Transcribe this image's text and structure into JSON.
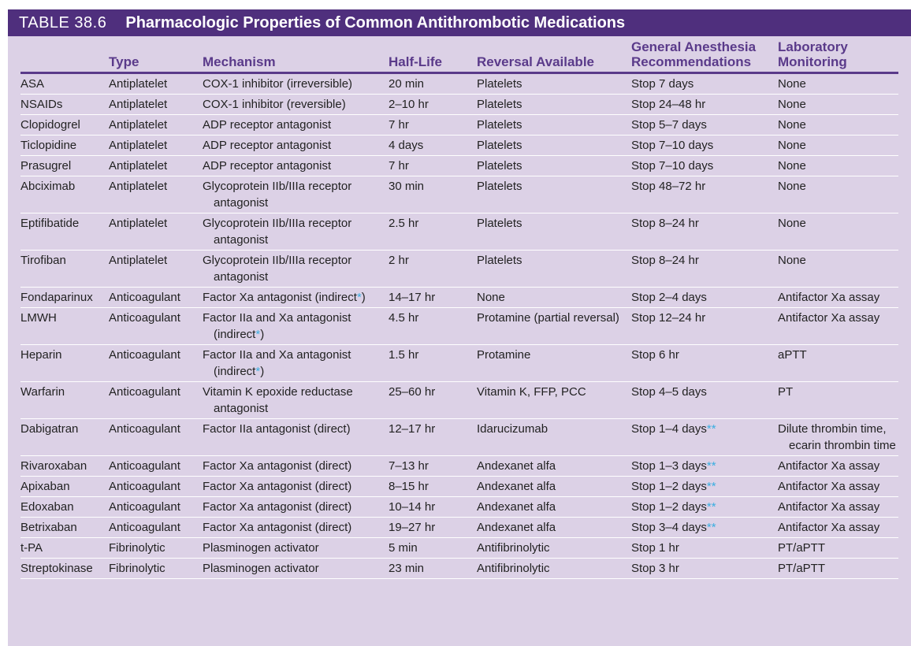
{
  "title": {
    "number": "TABLE 38.6",
    "text": "Pharmacologic Properties of Common Antithrombotic Medications"
  },
  "columns": [
    {
      "line1": "",
      "line2": ""
    },
    {
      "line1": "",
      "line2": "Type"
    },
    {
      "line1": "",
      "line2": "Mechanism"
    },
    {
      "line1": "",
      "line2": "Half-Life"
    },
    {
      "line1": "",
      "line2": "Reversal Available"
    },
    {
      "line1": "General Anesthesia",
      "line2": "Recommendations"
    },
    {
      "line1": "Laboratory",
      "line2": "Monitoring"
    }
  ],
  "rows": [
    {
      "drug": "ASA",
      "type": "Antiplatelet",
      "mech1": "COX-1 inhibitor (irreversible)",
      "mech2": "",
      "mech_note": "",
      "mech2_note": "",
      "half": "20 min",
      "rev": "Platelets",
      "ga": "Stop 7 days",
      "ga_note": "",
      "lab1": "None",
      "lab2": ""
    },
    {
      "drug": "NSAIDs",
      "type": "Antiplatelet",
      "mech1": "COX-1 inhibitor (reversible)",
      "mech2": "",
      "mech_note": "",
      "mech2_note": "",
      "half": "2–10 hr",
      "rev": "Platelets",
      "ga": "Stop 24–48 hr",
      "ga_note": "",
      "lab1": "None",
      "lab2": ""
    },
    {
      "drug": "Clopidogrel",
      "type": "Antiplatelet",
      "mech1": "ADP receptor antagonist",
      "mech2": "",
      "mech_note": "",
      "mech2_note": "",
      "half": "7 hr",
      "rev": "Platelets",
      "ga": "Stop 5–7 days",
      "ga_note": "",
      "lab1": "None",
      "lab2": ""
    },
    {
      "drug": "Ticlopidine",
      "type": "Antiplatelet",
      "mech1": "ADP receptor antagonist",
      "mech2": "",
      "mech_note": "",
      "mech2_note": "",
      "half": "4 days",
      "rev": "Platelets",
      "ga": "Stop 7–10 days",
      "ga_note": "",
      "lab1": "None",
      "lab2": ""
    },
    {
      "drug": "Prasugrel",
      "type": "Antiplatelet",
      "mech1": "ADP receptor antagonist",
      "mech2": "",
      "mech_note": "",
      "mech2_note": "",
      "half": "7 hr",
      "rev": "Platelets",
      "ga": "Stop 7–10 days",
      "ga_note": "",
      "lab1": "None",
      "lab2": ""
    },
    {
      "drug": "Abciximab",
      "type": "Antiplatelet",
      "mech1": "Glycoprotein IIb/IIIa receptor",
      "mech2": "antagonist",
      "mech_note": "",
      "mech2_note": "",
      "half": "30 min",
      "rev": "Platelets",
      "ga": "Stop 48–72 hr",
      "ga_note": "",
      "lab1": "None",
      "lab2": ""
    },
    {
      "drug": "Eptifibatide",
      "type": "Antiplatelet",
      "mech1": "Glycoprotein IIb/IIIa receptor",
      "mech2": "antagonist",
      "mech_note": "",
      "mech2_note": "",
      "half": "2.5 hr",
      "rev": "Platelets",
      "ga": "Stop 8–24 hr",
      "ga_note": "",
      "lab1": "None",
      "lab2": ""
    },
    {
      "drug": "Tirofiban",
      "type": "Antiplatelet",
      "mech1": "Glycoprotein IIb/IIIa receptor",
      "mech2": "antagonist",
      "mech_note": "",
      "mech2_note": "",
      "half": "2 hr",
      "rev": "Platelets",
      "ga": "Stop 8–24 hr",
      "ga_note": "",
      "lab1": "None",
      "lab2": ""
    },
    {
      "drug": "Fondaparinux",
      "type": "Anticoagulant",
      "mech1": "Factor Xa antagonist (indirect",
      "mech2": "",
      "mech_note": "*",
      ")": "",
      "mech_close": ")",
      "mech2_note": "",
      "half": "14–17 hr",
      "rev": "None",
      "ga": "Stop 2–4 days",
      "ga_note": "",
      "lab1": "Antifactor Xa assay",
      "lab2": ""
    },
    {
      "drug": "LMWH",
      "type": "Anticoagulant",
      "mech1": "Factor IIa and Xa antagonist",
      "mech2": "(indirect",
      "mech_note": "",
      "mech2_note": "*",
      "mech2_close": ")",
      "half": "4.5 hr",
      "rev": "Protamine (partial reversal)",
      "ga": "Stop 12–24 hr",
      "ga_note": "",
      "lab1": "Antifactor Xa assay",
      "lab2": ""
    },
    {
      "drug": "Heparin",
      "type": "Anticoagulant",
      "mech1": "Factor IIa and Xa antagonist",
      "mech2": "(indirect",
      "mech_note": "",
      "mech2_note": "*",
      "mech2_close": ")",
      "half": "1.5 hr",
      "rev": "Protamine",
      "ga": "Stop 6 hr",
      "ga_note": "",
      "lab1": "aPTT",
      "lab2": ""
    },
    {
      "drug": "Warfarin",
      "type": "Anticoagulant",
      "mech1": "Vitamin K epoxide reductase",
      "mech2": "antagonist",
      "mech_note": "",
      "mech2_note": "",
      "half": "25–60 hr",
      "rev": "Vitamin K, FFP, PCC",
      "ga": "Stop 4–5 days",
      "ga_note": "",
      "lab1": "PT",
      "lab2": ""
    },
    {
      "drug": "Dabigatran",
      "type": "Anticoagulant",
      "mech1": "Factor IIa antagonist (direct)",
      "mech2": "",
      "mech_note": "",
      "mech2_note": "",
      "half": "12–17 hr",
      "rev": "Idarucizumab",
      "ga": "Stop 1–4 days",
      "ga_note": "**",
      "lab1": "Dilute thrombin time,",
      "lab2": "ecarin thrombin time"
    },
    {
      "drug": "Rivaroxaban",
      "type": "Anticoagulant",
      "mech1": "Factor Xa antagonist (direct)",
      "mech2": "",
      "mech_note": "",
      "mech2_note": "",
      "half": "7–13 hr",
      "rev": "Andexanet alfa",
      "ga": "Stop 1–3 days",
      "ga_note": "**",
      "lab1": "Antifactor Xa assay",
      "lab2": ""
    },
    {
      "drug": "Apixaban",
      "type": "Anticoagulant",
      "mech1": "Factor Xa antagonist (direct)",
      "mech2": "",
      "mech_note": "",
      "mech2_note": "",
      "half": "8–15 hr",
      "rev": "Andexanet alfa",
      "ga": "Stop 1–2 days",
      "ga_note": "**",
      "lab1": "Antifactor Xa assay",
      "lab2": ""
    },
    {
      "drug": "Edoxaban",
      "type": "Anticoagulant",
      "mech1": "Factor Xa antagonist (direct)",
      "mech2": "",
      "mech_note": "",
      "mech2_note": "",
      "half": "10–14 hr",
      "rev": "Andexanet alfa",
      "ga": "Stop 1–2 days",
      "ga_note": "**",
      "lab1": "Antifactor Xa assay",
      "lab2": ""
    },
    {
      "drug": "Betrixaban",
      "type": "Anticoagulant",
      "mech1": "Factor Xa antagonist (direct)",
      "mech2": "",
      "mech_note": "",
      "mech2_note": "",
      "half": "19–27 hr",
      "rev": "Andexanet alfa",
      "ga": "Stop 3–4 days",
      "ga_note": "**",
      "lab1": "Antifactor Xa assay",
      "lab2": ""
    },
    {
      "drug": "t-PA",
      "type": "Fibrinolytic",
      "mech1": "Plasminogen activator",
      "mech2": "",
      "mech_note": "",
      "mech2_note": "",
      "half": "5 min",
      "rev": "Antifibrinolytic",
      "ga": "Stop 1 hr",
      "ga_note": "",
      "lab1": "PT/aPTT",
      "lab2": ""
    },
    {
      "drug": "Streptokinase",
      "type": "Fibrinolytic",
      "mech1": "Plasminogen activator",
      "mech2": "",
      "mech_note": "",
      "mech2_note": "",
      "half": "23 min",
      "rev": "Antifibrinolytic",
      "ga": "Stop 3 hr",
      "ga_note": "",
      "lab1": "PT/aPTT",
      "lab2": ""
    }
  ],
  "colors": {
    "title_bg": "#4f2f7d",
    "table_bg": "#dcd1e6",
    "header_text": "#5a3a8a",
    "asterisk": "#3aaee0"
  }
}
